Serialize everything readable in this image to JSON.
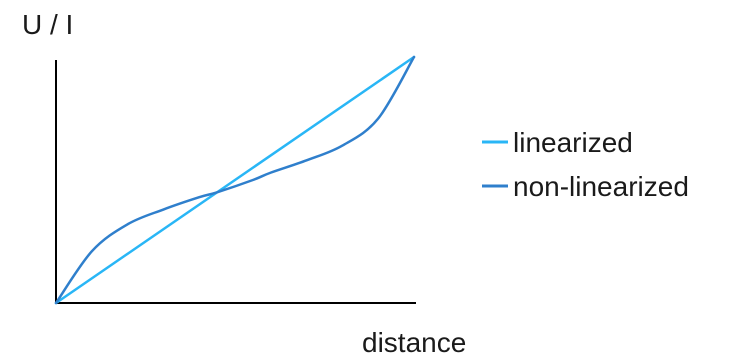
{
  "chart_data": {
    "type": "line",
    "title": "",
    "xlabel": "distance",
    "ylabel": "U / I",
    "xlim": [
      0,
      1
    ],
    "ylim": [
      0,
      1
    ],
    "grid": false,
    "ticks": false,
    "legend_position": "right",
    "series": [
      {
        "name": "linearized",
        "color": "#29b6f6",
        "x": [
          0,
          1
        ],
        "y": [
          0,
          1
        ]
      },
      {
        "name": "non-linearized",
        "color": "#2f7fcc",
        "x": [
          0,
          0.1,
          0.2,
          0.3,
          0.4,
          0.45,
          0.55,
          0.6,
          0.7,
          0.8,
          0.9,
          1
        ],
        "y": [
          0,
          0.21,
          0.32,
          0.38,
          0.43,
          0.45,
          0.5,
          0.53,
          0.58,
          0.64,
          0.75,
          1
        ]
      }
    ]
  }
}
